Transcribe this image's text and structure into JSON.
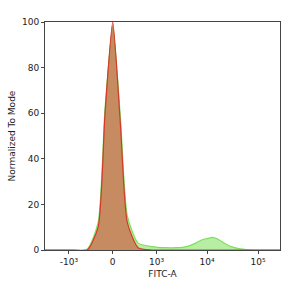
{
  "chart_data": {
    "type": "area",
    "x_label": "FITC-A",
    "y_label": "Normalized To Mode",
    "x": [
      -3000,
      -1500,
      -800,
      -400,
      -200,
      -100,
      0,
      100,
      200,
      400,
      800,
      1500,
      2500,
      4000,
      6000,
      8000,
      10000,
      13000,
      17000,
      22000,
      30000,
      45000,
      80000,
      150000,
      270000
    ],
    "series": [
      {
        "color": "#7ee05a",
        "values": [
          0,
          0,
          0,
          0.5,
          12,
          62,
          98,
          58,
          15,
          3,
          1.5,
          1,
          1,
          1.5,
          3,
          4.5,
          5,
          5.5,
          4.5,
          3,
          1.5,
          0.5,
          0,
          0,
          0
        ]
      },
      {
        "color": "#d23a2a",
        "values": [
          0,
          0,
          0,
          0,
          10,
          60,
          100,
          55,
          12,
          1,
          0,
          0,
          0,
          0,
          0,
          0,
          0,
          0,
          0,
          0,
          0,
          0,
          0,
          0,
          0
        ]
      }
    ],
    "xlim": [
      -3000,
      270000
    ],
    "xticks": [
      {
        "value": -1000,
        "label": "-10³"
      },
      0,
      {
        "value": 1000,
        "label": "10³"
      },
      {
        "value": 10000,
        "label": "10⁴"
      },
      {
        "value": 100000,
        "label": "10⁵"
      }
    ],
    "ylim": [
      0,
      100
    ],
    "yticks": [
      0,
      20,
      40,
      60,
      80,
      100
    ],
    "grid": false
  }
}
